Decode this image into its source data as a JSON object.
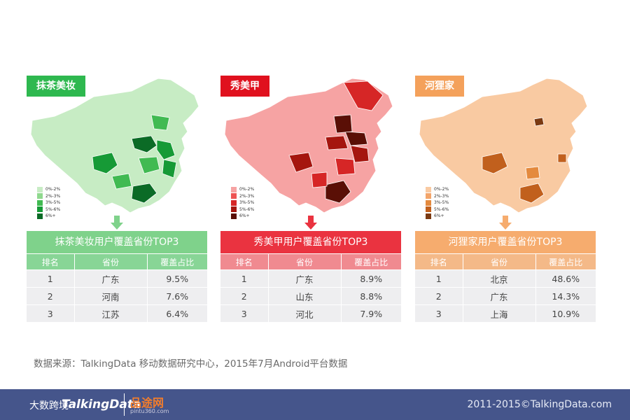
{
  "panels": [
    {
      "tag": "抹茶美妆",
      "table_title": "抹茶美妆用户覆盖省份TOP3",
      "accent": "#2eb84f",
      "header_bg": "#7fd28b",
      "th_bg": "#88d596",
      "legend": [
        {
          "label": "0%-2%",
          "color": "#c7ecc4"
        },
        {
          "label": "2%-3%",
          "color": "#8fd98e"
        },
        {
          "label": "3%-5%",
          "color": "#41ba52"
        },
        {
          "label": "5%-6%",
          "color": "#169a36"
        },
        {
          "label": "6%+",
          "color": "#0b6b26"
        }
      ]
    },
    {
      "tag": "秀美甲",
      "table_title": "秀美甲用户覆盖省份TOP3",
      "accent": "#e0111e",
      "header_bg": "#ea3340",
      "th_bg": "#f08a90",
      "legend": [
        {
          "label": "0%-2%",
          "color": "#f6a3a3"
        },
        {
          "label": "2%-3%",
          "color": "#ee5454"
        },
        {
          "label": "3%-5%",
          "color": "#d62626"
        },
        {
          "label": "5%-6%",
          "color": "#a5160f"
        },
        {
          "label": "6%+",
          "color": "#5a0f06"
        }
      ]
    },
    {
      "tag": "河狸家",
      "table_title": "河狸家用户覆盖省份TOP3",
      "accent": "#f4a15b",
      "header_bg": "#f6ac6e",
      "th_bg": "#f4b988",
      "legend": [
        {
          "label": "0%-2%",
          "color": "#f9caa2"
        },
        {
          "label": "2%-3%",
          "color": "#f3a56a"
        },
        {
          "label": "3%-5%",
          "color": "#e48a3e"
        },
        {
          "label": "5%-6%",
          "color": "#c1601d"
        },
        {
          "label": "6%+",
          "color": "#7b3a12"
        }
      ]
    }
  ],
  "table_headers": [
    "排名",
    "省份",
    "覆盖占比"
  ],
  "chart_data": [
    {
      "type": "table",
      "title": "抹茶美妆用户覆盖省份TOP3",
      "columns": [
        "排名",
        "省份",
        "覆盖占比"
      ],
      "rows": [
        [
          "1",
          "广东",
          "9.5%"
        ],
        [
          "2",
          "河南",
          "7.6%"
        ],
        [
          "3",
          "江苏",
          "6.4%"
        ]
      ]
    },
    {
      "type": "table",
      "title": "秀美甲用户覆盖省份TOP3",
      "columns": [
        "排名",
        "省份",
        "覆盖占比"
      ],
      "rows": [
        [
          "1",
          "广东",
          "8.9%"
        ],
        [
          "2",
          "山东",
          "8.8%"
        ],
        [
          "3",
          "河北",
          "7.9%"
        ]
      ]
    },
    {
      "type": "table",
      "title": "河狸家用户覆盖省份TOP3",
      "columns": [
        "排名",
        "省份",
        "覆盖占比"
      ],
      "rows": [
        [
          "1",
          "北京",
          "48.6%"
        ],
        [
          "2",
          "广东",
          "14.3%"
        ],
        [
          "3",
          "上海",
          "10.9%"
        ]
      ]
    }
  ],
  "source_text": "数据来源：TalkingData 移动数据研究中心，2015年7月Android平台数据",
  "footer": {
    "logo_cn": "大数跨境",
    "logo": "TalkingData",
    "partner": "品途网",
    "partner_sub": "pintu360.com",
    "copyright": "2011-2015©TalkingData.com"
  }
}
